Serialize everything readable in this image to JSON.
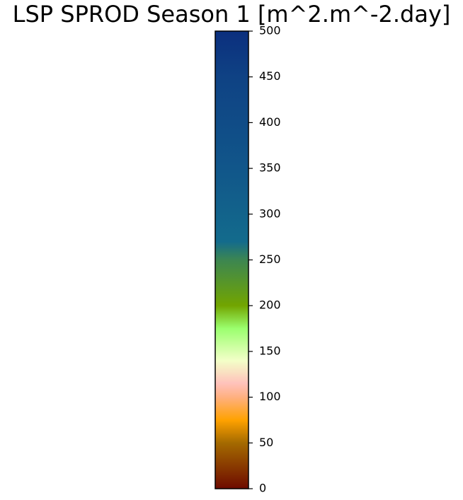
{
  "chart_data": {
    "type": "colorbar",
    "title": "LSP SPROD Season 1 [m^2.m^-2.day]",
    "orientation": "vertical",
    "range": [
      0,
      500
    ],
    "ticks": [
      0,
      50,
      100,
      150,
      200,
      250,
      300,
      350,
      400,
      450,
      500
    ],
    "tick_labels": [
      "0",
      "50",
      "100",
      "150",
      "200",
      "250",
      "300",
      "350",
      "400",
      "450",
      "500"
    ],
    "colormap_stops": [
      {
        "value": 0,
        "color": "#6e0b00"
      },
      {
        "value": 50,
        "color": "#a46a00"
      },
      {
        "value": 75,
        "color": "#ffa200"
      },
      {
        "value": 100,
        "color": "#ffb080"
      },
      {
        "value": 115,
        "color": "#ffc2bb"
      },
      {
        "value": 140,
        "color": "#f3ffc8"
      },
      {
        "value": 175,
        "color": "#9bff6e"
      },
      {
        "value": 200,
        "color": "#72a500"
      },
      {
        "value": 250,
        "color": "#3c8651"
      },
      {
        "value": 270,
        "color": "#136b8c"
      },
      {
        "value": 350,
        "color": "#11568a"
      },
      {
        "value": 450,
        "color": "#0f4284"
      },
      {
        "value": 500,
        "color": "#0b2f7e"
      }
    ]
  }
}
